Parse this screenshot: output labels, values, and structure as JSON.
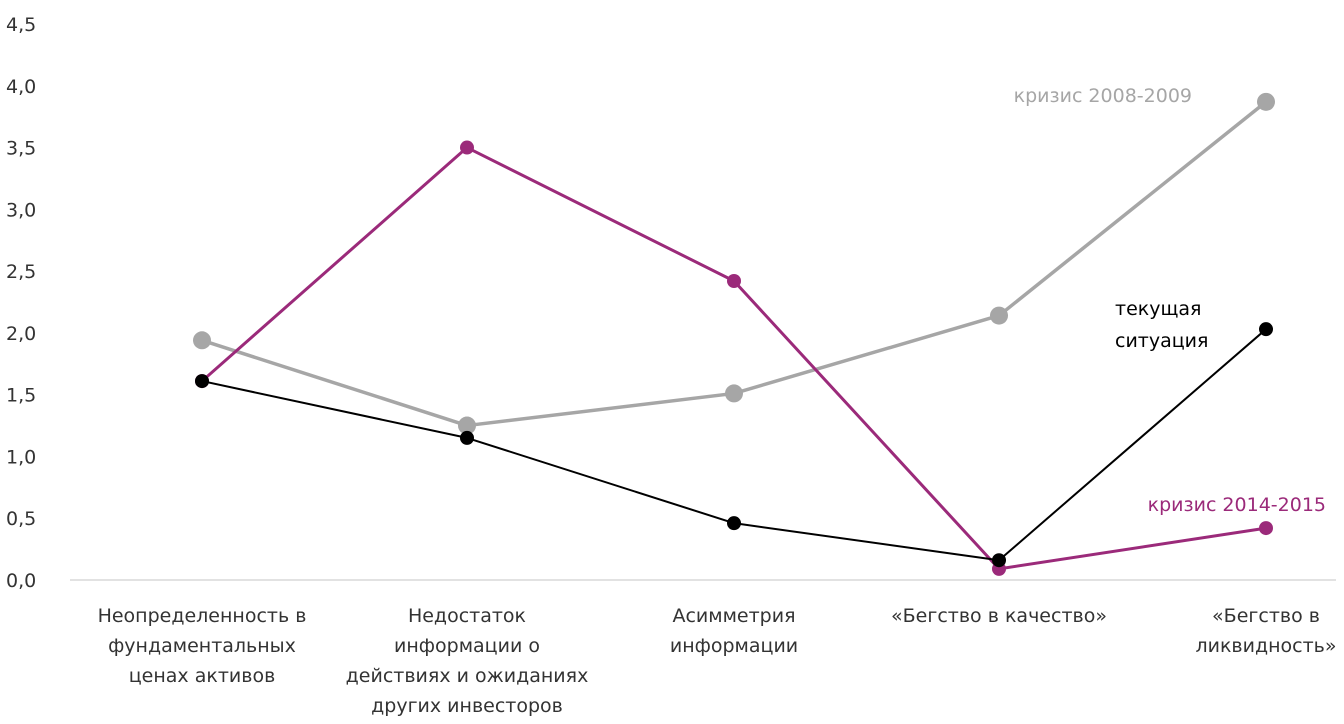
{
  "chart_data": {
    "type": "line",
    "categories": [
      [
        "Неопределенность в",
        "фундаментальных",
        "ценах активов"
      ],
      [
        "Недостаток",
        "информации о",
        "действиях и ожиданиях",
        "других инвесторов"
      ],
      [
        "Асимметрия",
        "информации"
      ],
      [
        "«Бегство в качество»"
      ],
      [
        "«Бегство в",
        "ликвидность»"
      ]
    ],
    "ylim": [
      0,
      4.5
    ],
    "yticks": [
      "0,0",
      "0,5",
      "1,0",
      "1,5",
      "2,0",
      "2,5",
      "3,0",
      "3,5",
      "4,0",
      "4,5"
    ],
    "grid": false,
    "series": [
      {
        "name": "кризис 2008-2009",
        "color": "#a6a6a6",
        "values": [
          1.94,
          1.25,
          1.51,
          2.14,
          3.87
        ]
      },
      {
        "name": "кризис 2014-2015",
        "color": "#9b2a7a",
        "values": [
          1.61,
          3.5,
          2.42,
          0.09,
          0.42
        ]
      },
      {
        "name": "текущая ситуация",
        "color": "#000000",
        "values": [
          1.61,
          1.15,
          0.46,
          0.16,
          2.03
        ]
      }
    ],
    "annotations": {
      "crisis_2008": "кризис 2008-2009",
      "current_line1": "текущая",
      "current_line2": "ситуация",
      "crisis_2014": "кризис 2014-2015"
    }
  }
}
